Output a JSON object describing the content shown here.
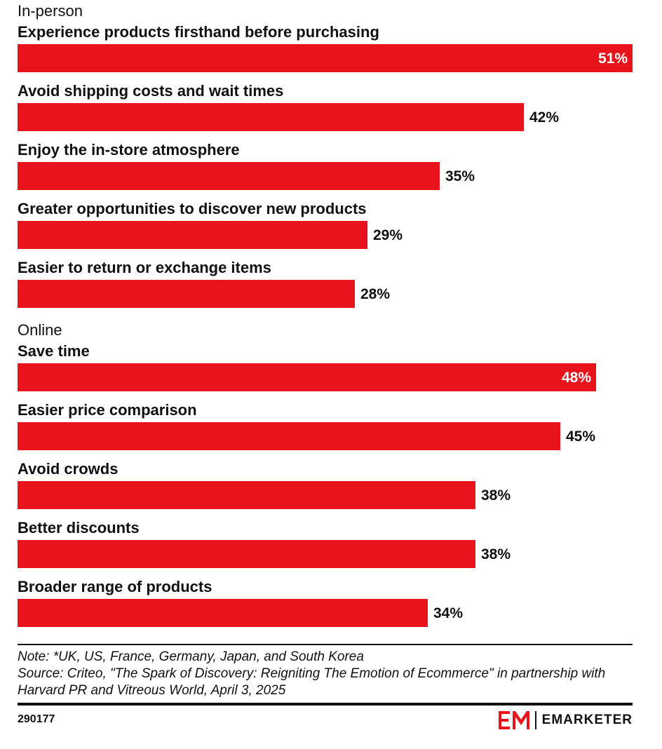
{
  "chart_data": {
    "type": "bar",
    "orientation": "horizontal",
    "value_format": "{v}%",
    "xlim": [
      0,
      51
    ],
    "colors": {
      "bar": "#e9141b",
      "text": "#111111",
      "inside_label": "#ffffff"
    },
    "groups": [
      {
        "name": "In-person",
        "categories": [
          "Experience products firsthand before purchasing",
          "Avoid shipping costs and wait times",
          "Enjoy the in-store atmosphere",
          "Greater opportunities to discover new products",
          "Easier to return or exchange items"
        ],
        "values": [
          51,
          42,
          35,
          29,
          28
        ]
      },
      {
        "name": "Online",
        "categories": [
          "Save time",
          "Easier price comparison",
          "Avoid crowds",
          "Better discounts",
          "Broader range of products"
        ],
        "values": [
          48,
          45,
          38,
          38,
          34
        ]
      }
    ]
  },
  "footer": {
    "note": "Note: *UK, US, France, Germany, Japan, and South Korea",
    "source": "Source: Criteo, \"The Spark of Discovery: Reigniting The Emotion of Ecommerce\" in partnership with Harvard PR and Vitreous World, April 3, 2025",
    "chart_id": "290177",
    "brand": "EMARKETER"
  }
}
